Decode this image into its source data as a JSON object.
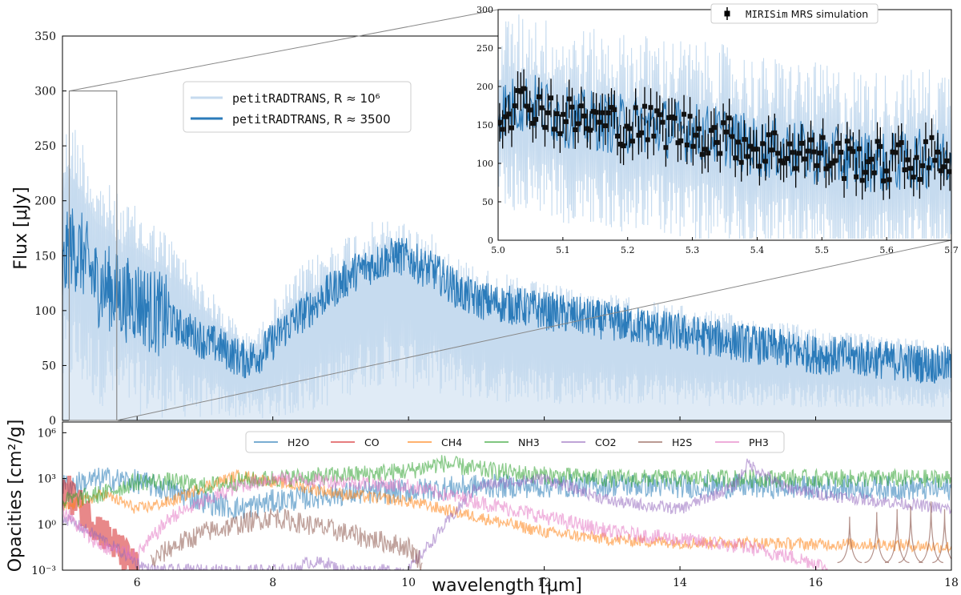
{
  "chart_data": [
    {
      "panel": "main",
      "type": "line",
      "xlabel": "wavelength [μm]",
      "ylabel": "Flux [μJy]",
      "xlim": [
        4.9,
        18
      ],
      "ylim": [
        0,
        350
      ],
      "x_ticks": [
        6,
        8,
        10,
        12,
        14,
        16,
        18
      ],
      "x_tick_labels": [
        "6",
        "8",
        "10",
        "12",
        "14",
        "16",
        "18"
      ],
      "y_ticks": [
        0,
        50,
        100,
        150,
        200,
        250,
        300,
        350
      ],
      "y_tick_labels": [
        "0",
        "50",
        "100",
        "150",
        "200",
        "250",
        "300",
        "350"
      ],
      "zoom_box": {
        "x": [
          5.0,
          5.7
        ],
        "y": [
          0,
          300
        ]
      },
      "legend": [
        {
          "name_mono": "petitRADTRANS",
          "suffix": ", R ≈ 10⁶",
          "color": "#c6dbef"
        },
        {
          "name_mono": "petitRADTRANS",
          "suffix": ", R ≈ 3500",
          "color": "#2b7bba"
        }
      ],
      "series": [
        {
          "name": "petitRADTRANS, R ≈ 3500",
          "color": "#2b7bba",
          "x": [
            4.9,
            5.0,
            5.2,
            5.4,
            5.6,
            5.8,
            6.0,
            6.2,
            6.4,
            6.6,
            6.8,
            7.0,
            7.2,
            7.4,
            7.6,
            7.8,
            8.0,
            8.2,
            8.4,
            8.6,
            8.8,
            9.0,
            9.2,
            9.4,
            9.6,
            9.8,
            10.0,
            10.2,
            10.4,
            10.6,
            10.8,
            11.0,
            11.5,
            12.0,
            12.5,
            13.0,
            13.5,
            14.0,
            14.5,
            15.0,
            15.5,
            16.0,
            16.5,
            17.0,
            17.5,
            18.0
          ],
          "y": [
            130,
            160,
            150,
            125,
            120,
            110,
            110,
            100,
            95,
            85,
            80,
            72,
            68,
            60,
            55,
            60,
            72,
            85,
            95,
            105,
            115,
            125,
            135,
            140,
            145,
            150,
            148,
            140,
            135,
            125,
            115,
            110,
            105,
            100,
            95,
            90,
            85,
            80,
            75,
            70,
            65,
            60,
            58,
            55,
            52,
            50
          ],
          "noise": 18
        },
        {
          "name": "petitRADTRANS, R ≈ 10⁶",
          "color": "#c6dbef",
          "x": [
            4.9,
            5.0,
            5.2,
            5.4,
            5.6,
            5.8,
            6.0,
            6.2,
            6.4,
            6.6,
            6.8,
            7.0,
            7.2,
            7.4,
            7.6,
            7.8,
            8.0,
            8.2,
            8.4,
            8.6,
            8.8,
            9.0,
            9.2,
            9.4,
            9.6,
            9.8,
            10.0,
            10.2,
            10.4,
            10.6,
            10.8,
            11.0,
            11.5,
            12.0,
            12.5,
            13.0,
            13.5,
            14.0,
            14.5,
            15.0,
            15.5,
            16.0,
            16.5,
            17.0,
            17.5,
            18.0
          ],
          "upper": [
            260,
            280,
            260,
            225,
            215,
            200,
            195,
            185,
            175,
            160,
            145,
            125,
            110,
            95,
            80,
            85,
            110,
            125,
            140,
            150,
            160,
            168,
            175,
            180,
            183,
            185,
            182,
            175,
            168,
            158,
            148,
            142,
            132,
            125,
            120,
            115,
            110,
            105,
            100,
            95,
            90,
            85,
            80,
            78,
            75,
            72
          ],
          "lower": [
            20,
            30,
            25,
            15,
            10,
            8,
            5,
            3,
            2,
            2,
            2,
            2,
            2,
            2,
            2,
            2,
            2,
            3,
            5,
            8,
            12,
            18,
            25,
            30,
            32,
            30,
            28,
            28,
            25,
            22,
            20,
            18,
            16,
            15,
            15,
            14,
            14,
            13,
            13,
            12,
            12,
            12,
            12,
            12,
            12,
            12
          ]
        }
      ]
    },
    {
      "panel": "inset",
      "type": "line",
      "xlim": [
        5.0,
        5.7
      ],
      "ylim": [
        0,
        300
      ],
      "x_ticks": [
        5.0,
        5.1,
        5.2,
        5.3,
        5.4,
        5.5,
        5.6,
        5.7
      ],
      "x_tick_labels": [
        "5.0",
        "5.1",
        "5.2",
        "5.3",
        "5.4",
        "5.5",
        "5.6",
        "5.7"
      ],
      "y_ticks": [
        0,
        50,
        100,
        150,
        200,
        250,
        300
      ],
      "y_tick_labels": [
        "0",
        "50",
        "100",
        "150",
        "200",
        "250",
        "300"
      ],
      "legend": [
        {
          "name_mono": "MIRISim",
          "suffix": " MRS simulation",
          "color": "#000000"
        }
      ],
      "series": [
        {
          "name": "petitRADTRANS, R ≈ 3500",
          "color": "#2b7bba",
          "x": [
            5.0,
            5.05,
            5.1,
            5.15,
            5.2,
            5.25,
            5.3,
            5.35,
            5.4,
            5.45,
            5.5,
            5.55,
            5.6,
            5.65,
            5.7
          ],
          "y": [
            170,
            180,
            160,
            155,
            150,
            148,
            140,
            135,
            120,
            118,
            110,
            105,
            100,
            105,
            110
          ],
          "noise": 40
        },
        {
          "name": "MIRISim MRS simulation",
          "color": "#000000",
          "x": [
            5.0,
            5.05,
            5.1,
            5.15,
            5.2,
            5.25,
            5.3,
            5.35,
            5.4,
            5.45,
            5.5,
            5.55,
            5.6,
            5.65,
            5.7
          ],
          "y": [
            170,
            180,
            160,
            155,
            150,
            148,
            140,
            135,
            120,
            118,
            110,
            105,
            100,
            105,
            110
          ],
          "n_points": 150,
          "errorbar": 25
        }
      ]
    },
    {
      "panel": "opacities",
      "type": "line",
      "xlabel": "wavelength [μm]",
      "ylabel": "Opacities [cm²/g]",
      "yscale": "log",
      "xlim": [
        4.9,
        18
      ],
      "ylim_log10": [
        -3,
        6.7
      ],
      "x_ticks": [
        6,
        8,
        10,
        12,
        14,
        16,
        18
      ],
      "x_tick_labels": [
        "6",
        "8",
        "10",
        "12",
        "14",
        "16",
        "18"
      ],
      "y_ticks_log10": [
        -3,
        0,
        3,
        6
      ],
      "y_tick_labels": [
        "10⁻³",
        "10⁰",
        "10³",
        "10⁶"
      ],
      "series": [
        {
          "name": "H2O",
          "color": "#1f77b4",
          "x": [
            4.9,
            5.5,
            6.0,
            6.5,
            7.0,
            7.5,
            8.0,
            9.0,
            10.0,
            11.0,
            12.0,
            13.0,
            14.0,
            15.0,
            16.0,
            17.0,
            18.0
          ],
          "log_y": [
            2.5,
            3.0,
            2.8,
            2.2,
            1.5,
            1.0,
            1.5,
            2.0,
            2.2,
            2.5,
            2.5,
            2.6,
            2.5,
            2.5,
            2.4,
            2.4,
            2.3
          ],
          "noise": 0.8
        },
        {
          "name": "CO",
          "color": "#d62728",
          "x": [
            4.9,
            5.0,
            5.2,
            5.4,
            5.6,
            5.8,
            6.0
          ],
          "log_y": [
            2.5,
            2.0,
            1.0,
            0.0,
            -1.0,
            -2.0,
            -3.0
          ],
          "noise": 1.2
        },
        {
          "name": "CH4",
          "color": "#ff7f0e",
          "x": [
            4.9,
            5.5,
            6.0,
            6.5,
            7.0,
            7.5,
            8.0,
            9.0,
            10.0,
            11.0,
            12.0,
            13.0,
            14.0,
            15.0,
            16.0,
            17.0,
            18.0
          ],
          "log_y": [
            1.0,
            2.0,
            1.0,
            1.5,
            2.5,
            3.2,
            2.8,
            2.0,
            1.5,
            0.5,
            -0.5,
            -1.0,
            -1.2,
            -1.2,
            -1.3,
            -1.3,
            -1.5
          ],
          "noise": 0.4
        },
        {
          "name": "NH3",
          "color": "#2ca02c",
          "x": [
            4.9,
            5.5,
            6.0,
            6.5,
            7.0,
            7.5,
            8.0,
            9.0,
            10.0,
            10.5,
            11.0,
            12.0,
            13.0,
            14.0,
            15.0,
            16.0,
            17.0,
            18.0
          ],
          "log_y": [
            1.5,
            2.0,
            2.8,
            2.8,
            2.5,
            2.8,
            3.0,
            3.2,
            3.5,
            4.0,
            3.6,
            3.2,
            3.0,
            3.0,
            3.0,
            3.0,
            3.0,
            3.0
          ],
          "noise": 0.6
        },
        {
          "name": "CO2",
          "color": "#9467bd",
          "x": [
            4.9,
            5.5,
            6.0,
            6.2,
            8.3,
            8.5,
            8.8,
            9.0,
            10.0,
            11.0,
            12.0,
            13.0,
            14.0,
            14.8,
            15.0,
            15.5,
            16.0,
            17.0,
            18.0
          ],
          "log_y": [
            0.5,
            -1.0,
            -2.5,
            -3.0,
            -3.0,
            -2.5,
            -2.5,
            -3.0,
            -3.0,
            2.5,
            3.0,
            1.5,
            1.0,
            2.5,
            4.0,
            2.5,
            2.0,
            1.5,
            1.0
          ],
          "noise": 0.4
        },
        {
          "name": "H2S",
          "color": "#8c564b",
          "x": [
            6.2,
            6.5,
            7.0,
            7.5,
            8.0,
            8.5,
            9.0,
            9.5,
            10.0,
            10.2
          ],
          "log_y": [
            -2.5,
            -1.5,
            -0.5,
            0.0,
            0.5,
            0.0,
            -0.5,
            -1.0,
            -1.5,
            -2.5
          ],
          "noise": 0.7,
          "peaks_x": [
            16.5,
            16.9,
            17.2,
            17.4,
            17.7,
            17.9
          ],
          "peaks_logy": [
            0.5,
            0.8,
            1.0,
            1.2,
            1.5,
            1.0
          ],
          "peak_base": -2.5
        },
        {
          "name": "PH3",
          "color": "#e377c2",
          "x": [
            4.9,
            5.2,
            5.5,
            6.0,
            6.2,
            6.5,
            7.0,
            7.5,
            8.0,
            9.0,
            10.0,
            11.0,
            12.0,
            13.0,
            14.0,
            15.0,
            15.5,
            16.0,
            16.2
          ],
          "log_y": [
            1.0,
            -0.5,
            -1.5,
            -2.0,
            -1.0,
            0.5,
            1.5,
            2.5,
            3.0,
            2.8,
            2.5,
            1.5,
            0.5,
            -0.5,
            -1.0,
            -1.5,
            -2.0,
            -2.5,
            -3.0
          ],
          "noise": 0.5
        }
      ]
    }
  ]
}
